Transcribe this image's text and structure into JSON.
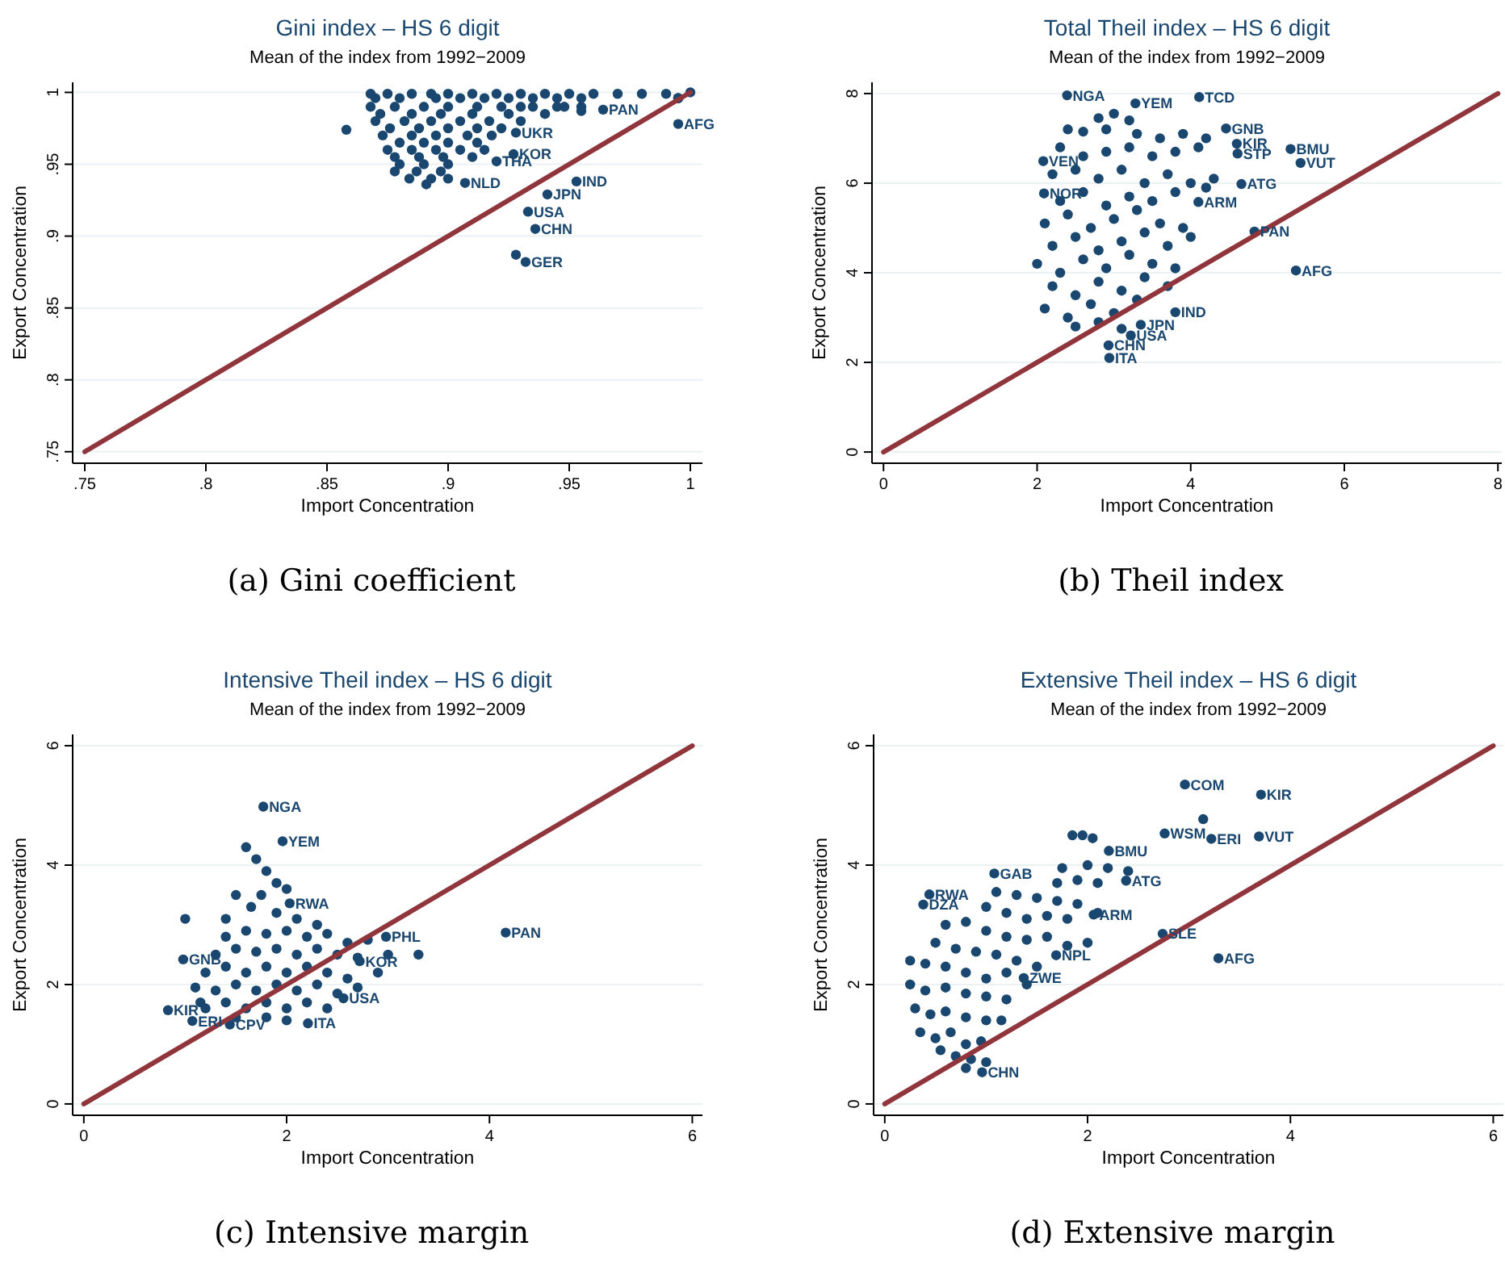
{
  "chart_data": [
    {
      "type": "scatter",
      "title": "Gini index – HS 6 digit",
      "subtitle": "Mean of the  index from 1992−2009",
      "xlabel": "Import Concentration",
      "ylabel": "Export Concentration",
      "xlim": [
        0.745,
        1.005
      ],
      "ylim": [
        0.742,
        1.007
      ],
      "xticks": [
        {
          "value": 0.75,
          "label": ".75"
        },
        {
          "value": 0.8,
          "label": ".8"
        },
        {
          "value": 0.85,
          "label": ".85"
        },
        {
          "value": 0.9,
          "label": ".9"
        },
        {
          "value": 0.95,
          "label": ".95"
        },
        {
          "value": 1,
          "label": "1"
        }
      ],
      "yticks": [
        {
          "value": 0.75,
          "label": ".75"
        },
        {
          "value": 0.8,
          "label": ".8"
        },
        {
          "value": 0.85,
          "label": ".85"
        },
        {
          "value": 0.9,
          "label": ".9"
        },
        {
          "value": 0.95,
          "label": ".95"
        },
        {
          "value": 1,
          "label": "1"
        }
      ],
      "grid": "y",
      "series": [
        {
          "marker": "circle",
          "color": "#1a476f",
          "x": [
            0.868,
            0.875,
            0.885,
            0.893,
            0.9,
            0.91,
            0.92,
            0.93,
            0.94,
            0.95,
            0.96,
            0.97,
            0.98,
            0.99,
            1.0,
            0.87,
            0.88,
            0.895,
            0.905,
            0.915,
            0.925,
            0.935,
            0.945,
            0.955,
            0.995,
            0.995,
            0.995,
            0.995,
            0.868,
            0.878,
            0.89,
            0.9,
            0.912,
            0.922,
            0.935,
            0.948,
            0.955,
            0.945,
            0.93,
            0.872,
            0.885,
            0.897,
            0.91,
            0.925,
            0.94,
            0.955,
            0.87,
            0.882,
            0.893,
            0.905,
            0.917,
            0.93,
            0.876,
            0.888,
            0.9,
            0.912,
            0.922,
            0.873,
            0.885,
            0.895,
            0.908,
            0.918,
            0.88,
            0.89,
            0.9,
            0.912,
            0.875,
            0.885,
            0.895,
            0.905,
            0.915,
            0.878,
            0.888,
            0.898,
            0.91,
            0.88,
            0.89,
            0.9,
            0.878,
            0.887,
            0.897,
            0.884,
            0.893,
            0.9,
            0.891,
            0.858,
            0.995,
            0.953,
            0.941,
            0.933,
            0.936,
            0.928,
            0.932,
            0.907,
            0.927,
            0.92,
            0.928,
            0.964
          ],
          "values": [
            0.999,
            0.999,
            0.999,
            0.999,
            0.999,
            0.999,
            0.999,
            0.999,
            0.999,
            0.999,
            0.999,
            0.999,
            0.999,
            0.999,
            1.0,
            0.996,
            0.996,
            0.996,
            0.996,
            0.996,
            0.996,
            0.996,
            0.996,
            0.996,
            0.996,
            0.996,
            0.996,
            0.996,
            0.99,
            0.99,
            0.99,
            0.99,
            0.99,
            0.99,
            0.99,
            0.99,
            0.99,
            0.99,
            0.99,
            0.985,
            0.985,
            0.985,
            0.985,
            0.985,
            0.985,
            0.987,
            0.98,
            0.98,
            0.98,
            0.98,
            0.98,
            0.98,
            0.975,
            0.975,
            0.975,
            0.975,
            0.975,
            0.97,
            0.97,
            0.97,
            0.97,
            0.97,
            0.965,
            0.965,
            0.965,
            0.965,
            0.96,
            0.96,
            0.96,
            0.96,
            0.96,
            0.955,
            0.955,
            0.955,
            0.955,
            0.95,
            0.95,
            0.95,
            0.945,
            0.945,
            0.945,
            0.94,
            0.94,
            0.94,
            0.936,
            0.974,
            0.978,
            0.938,
            0.929,
            0.917,
            0.905,
            0.887,
            0.882,
            0.937,
            0.957,
            0.952,
            0.972,
            0.988
          ]
        },
        {
          "type": "line",
          "color": "#90353b",
          "x": [
            0.75,
            1
          ],
          "values": [
            0.75,
            1
          ]
        }
      ],
      "annotations": [
        {
          "text": "AFG",
          "x": 0.995,
          "y": 0.978
        },
        {
          "text": "IND",
          "x": 0.953,
          "y": 0.938
        },
        {
          "text": "JPN",
          "x": 0.941,
          "y": 0.929
        },
        {
          "text": "USA",
          "x": 0.933,
          "y": 0.917
        },
        {
          "text": "CHN",
          "x": 0.936,
          "y": 0.905
        },
        {
          "text": "GER",
          "x": 0.932,
          "y": 0.882
        },
        {
          "text": "NLD",
          "x": 0.907,
          "y": 0.937
        },
        {
          "text": "KOR",
          "x": 0.927,
          "y": 0.957
        },
        {
          "text": "THA",
          "x": 0.92,
          "y": 0.952
        },
        {
          "text": "UKR",
          "x": 0.928,
          "y": 0.972
        },
        {
          "text": "PAN",
          "x": 0.964,
          "y": 0.988
        },
        "(a) Gini coefficient"
      ]
    },
    {
      "type": "scatter",
      "title": "Total Theil index – HS 6 digit",
      "subtitle": "Mean of the  index from 1992−2009",
      "xlabel": "Import Concentration",
      "ylabel": "Export Concentration",
      "xlim": [
        -0.15,
        8.05
      ],
      "ylim": [
        -0.25,
        8.25
      ],
      "xticks": [
        0,
        2,
        4,
        6,
        8
      ],
      "yticks": [
        0,
        2,
        4,
        6,
        8
      ],
      "grid": "y",
      "series": [
        {
          "marker": "circle",
          "color": "#1a476f",
          "x": [
            2.8,
            3.0,
            3.2,
            2.4,
            2.6,
            2.9,
            3.3,
            3.6,
            3.9,
            4.2,
            2.3,
            2.6,
            2.9,
            3.2,
            3.5,
            3.8,
            4.1,
            2.2,
            2.5,
            2.8,
            3.1,
            3.4,
            3.7,
            4.0,
            4.3,
            2.3,
            2.6,
            2.9,
            3.2,
            3.5,
            3.8,
            4.2,
            2.1,
            2.4,
            2.7,
            3.0,
            3.3,
            3.6,
            3.9,
            2.2,
            2.5,
            2.8,
            3.1,
            3.4,
            3.7,
            4.0,
            2.0,
            2.3,
            2.6,
            2.9,
            3.2,
            3.5,
            3.8,
            2.2,
            2.5,
            2.8,
            3.1,
            3.4,
            3.7,
            2.1,
            2.4,
            2.7,
            3.0,
            3.3,
            2.5,
            2.8,
            3.1,
            2.39,
            4.11,
            3.28,
            4.46,
            5.3,
            5.43,
            4.6,
            4.61,
            2.08,
            2.09,
            4.66,
            4.1,
            4.83,
            5.37,
            3.8,
            3.35,
            3.22,
            2.93,
            2.94
          ],
          "values": [
            7.45,
            7.55,
            7.4,
            7.2,
            7.15,
            7.2,
            7.1,
            7.0,
            7.1,
            7.0,
            6.8,
            6.6,
            6.7,
            6.8,
            6.6,
            6.7,
            6.8,
            6.2,
            6.3,
            6.1,
            6.3,
            6.0,
            6.2,
            6.0,
            6.1,
            5.6,
            5.8,
            5.5,
            5.7,
            5.6,
            5.8,
            5.9,
            5.1,
            5.3,
            5.0,
            5.2,
            5.4,
            5.1,
            5.0,
            4.6,
            4.8,
            4.5,
            4.7,
            4.9,
            4.6,
            4.8,
            4.2,
            4.0,
            4.3,
            4.1,
            4.4,
            4.2,
            4.1,
            3.7,
            3.5,
            3.8,
            3.6,
            3.9,
            3.7,
            3.2,
            3.0,
            3.3,
            3.1,
            3.4,
            2.8,
            2.9,
            2.75,
            7.96,
            7.92,
            7.78,
            7.22,
            6.76,
            6.45,
            6.88,
            6.66,
            6.49,
            5.77,
            5.98,
            5.58,
            4.92,
            4.05,
            3.12,
            2.84,
            2.6,
            2.38,
            2.1
          ]
        },
        {
          "type": "line",
          "color": "#90353b",
          "x": [
            0,
            8
          ],
          "values": [
            0,
            8
          ]
        }
      ],
      "annotations": [
        {
          "text": "NGA",
          "x": 2.39,
          "y": 7.96
        },
        {
          "text": "TCD",
          "x": 4.11,
          "y": 7.92
        },
        {
          "text": "YEM",
          "x": 3.28,
          "y": 7.78
        },
        {
          "text": "GNB",
          "x": 4.46,
          "y": 7.22
        },
        {
          "text": "BMU",
          "x": 5.3,
          "y": 6.76
        },
        {
          "text": "VUT",
          "x": 5.43,
          "y": 6.45
        },
        {
          "text": "KIR",
          "x": 4.6,
          "y": 6.88
        },
        {
          "text": "STP",
          "x": 4.61,
          "y": 6.66
        },
        {
          "text": "VEN",
          "x": 2.08,
          "y": 6.49
        },
        {
          "text": "NOR",
          "x": 2.09,
          "y": 5.77
        },
        {
          "text": "ATG",
          "x": 4.66,
          "y": 5.98
        },
        {
          "text": "ARM",
          "x": 4.1,
          "y": 5.58
        },
        {
          "text": "PAN",
          "x": 4.83,
          "y": 4.92
        },
        {
          "text": "AFG",
          "x": 5.37,
          "y": 4.05
        },
        {
          "text": "IND",
          "x": 3.8,
          "y": 3.12
        },
        {
          "text": "JPN",
          "x": 3.35,
          "y": 2.84
        },
        {
          "text": "USA",
          "x": 3.22,
          "y": 2.6
        },
        {
          "text": "CHN",
          "x": 2.93,
          "y": 2.38
        },
        {
          "text": "ITA",
          "x": 2.94,
          "y": 2.1
        },
        "(b) Theil index"
      ]
    },
    {
      "type": "scatter",
      "title": "Intensive Theil index – HS 6 digit",
      "subtitle": "Mean of the  index from 1992−2009",
      "xlabel": "Import Concentration",
      "ylabel": "Export Concentration",
      "xlim": [
        -0.11,
        6.1
      ],
      "ylim": [
        -0.19,
        6.19
      ],
      "xticks": [
        0,
        2,
        4,
        6
      ],
      "yticks": [
        0,
        2,
        4,
        6
      ],
      "grid": "y",
      "series": [
        {
          "marker": "circle",
          "color": "#1a476f",
          "x": [
            1.6,
            1.7,
            1.8,
            1.9,
            1.75,
            2.0,
            1.5,
            1.65,
            1.9,
            2.1,
            2.3,
            1.4,
            1.0,
            1.4,
            1.6,
            1.8,
            2.0,
            2.2,
            2.4,
            2.6,
            2.8,
            1.3,
            1.5,
            1.7,
            1.9,
            2.1,
            2.3,
            2.5,
            2.7,
            3.0,
            3.3,
            1.2,
            1.4,
            1.6,
            1.8,
            2.0,
            2.2,
            2.4,
            2.6,
            2.9,
            1.3,
            1.5,
            1.7,
            1.9,
            2.1,
            2.3,
            2.5,
            2.7,
            1.2,
            1.4,
            1.6,
            1.8,
            2.0,
            2.2,
            2.4,
            1.5,
            1.8,
            2.0,
            1.1,
            1.15,
            1.77,
            1.96,
            2.03,
            2.98,
            4.16,
            0.98,
            0.83,
            1.07,
            1.44,
            2.21,
            2.56,
            2.72
          ],
          "values": [
            4.3,
            4.1,
            3.9,
            3.7,
            3.5,
            3.6,
            3.5,
            3.3,
            3.2,
            3.1,
            3.0,
            3.1,
            3.1,
            2.8,
            2.9,
            2.85,
            2.9,
            2.8,
            2.85,
            2.7,
            2.75,
            2.5,
            2.6,
            2.55,
            2.6,
            2.5,
            2.6,
            2.5,
            2.45,
            2.5,
            2.5,
            2.2,
            2.3,
            2.2,
            2.3,
            2.2,
            2.3,
            2.2,
            2.1,
            2.2,
            1.9,
            2.0,
            1.9,
            2.0,
            1.9,
            2.0,
            1.85,
            1.95,
            1.6,
            1.7,
            1.6,
            1.7,
            1.6,
            1.7,
            1.6,
            1.45,
            1.45,
            1.4,
            1.95,
            1.7,
            4.98,
            4.4,
            3.36,
            2.8,
            2.87,
            2.42,
            1.57,
            1.39,
            1.33,
            1.35,
            1.77,
            2.39
          ]
        },
        {
          "type": "line",
          "color": "#90353b",
          "x": [
            0,
            6
          ],
          "values": [
            0,
            6
          ]
        }
      ],
      "annotations": [
        {
          "text": "NGA",
          "x": 1.77,
          "y": 4.98
        },
        {
          "text": "YEM",
          "x": 1.96,
          "y": 4.4
        },
        {
          "text": "RWA",
          "x": 2.03,
          "y": 3.36
        },
        {
          "text": "PHL",
          "x": 2.98,
          "y": 2.8
        },
        {
          "text": "PAN",
          "x": 4.16,
          "y": 2.87
        },
        {
          "text": "GNB",
          "x": 0.98,
          "y": 2.42
        },
        {
          "text": "KIR",
          "x": 0.83,
          "y": 1.57
        },
        {
          "text": "ERI",
          "x": 1.07,
          "y": 1.39
        },
        {
          "text": "CPV",
          "x": 1.44,
          "y": 1.33
        },
        {
          "text": "ITA",
          "x": 2.21,
          "y": 1.35
        },
        {
          "text": "USA",
          "x": 2.56,
          "y": 1.77
        },
        {
          "text": "KOR",
          "x": 2.72,
          "y": 2.39
        },
        "(c) Intensive margin"
      ]
    },
    {
      "type": "scatter",
      "title": "Extensive Theil index – HS 6 digit",
      "subtitle": "Mean of the  index from 1992−2009",
      "xlabel": "Import Concentration",
      "ylabel": "Export Concentration",
      "xlim": [
        -0.11,
        6.1
      ],
      "ylim": [
        -0.19,
        6.19
      ],
      "xticks": [
        0,
        2,
        4,
        6
      ],
      "yticks": [
        0,
        2,
        4,
        6
      ],
      "grid": "y",
      "series": [
        {
          "marker": "circle",
          "color": "#1a476f",
          "x": [
            1.85,
            1.95,
            2.05,
            1.75,
            2.0,
            2.2,
            2.4,
            1.7,
            1.9,
            2.1,
            1.1,
            1.3,
            1.5,
            1.7,
            1.9,
            2.1,
            1.0,
            1.2,
            1.4,
            1.6,
            1.8,
            0.6,
            0.8,
            1.0,
            1.2,
            1.4,
            1.6,
            1.8,
            2.0,
            0.5,
            0.7,
            0.9,
            1.1,
            1.3,
            1.5,
            0.25,
            0.4,
            0.6,
            0.8,
            1.0,
            1.2,
            1.4,
            0.25,
            0.4,
            0.6,
            0.8,
            1.0,
            1.2,
            0.3,
            0.45,
            0.6,
            0.8,
            1.0,
            1.15,
            0.35,
            0.5,
            0.65,
            0.8,
            0.95,
            0.55,
            0.7,
            0.85,
            1.0,
            0.8,
            2.96,
            3.71,
            3.14,
            2.76,
            3.22,
            3.69,
            2.21,
            2.38,
            1.08,
            0.44,
            0.38,
            2.74,
            3.29,
            1.69,
            1.37,
            2.06,
            0.96
          ],
          "values": [
            4.5,
            4.5,
            4.45,
            3.95,
            4.0,
            3.95,
            3.9,
            3.7,
            3.75,
            3.7,
            3.55,
            3.5,
            3.45,
            3.4,
            3.35,
            3.2,
            3.3,
            3.2,
            3.1,
            3.15,
            3.1,
            3.0,
            3.05,
            2.9,
            2.8,
            2.75,
            2.8,
            2.65,
            2.7,
            2.7,
            2.6,
            2.55,
            2.5,
            2.4,
            2.3,
            2.4,
            2.35,
            2.3,
            2.2,
            2.1,
            2.2,
            2.0,
            2.0,
            1.9,
            1.95,
            1.85,
            1.8,
            1.75,
            1.6,
            1.5,
            1.55,
            1.45,
            1.4,
            1.4,
            1.2,
            1.1,
            1.2,
            1.0,
            1.05,
            0.9,
            0.8,
            0.75,
            0.7,
            0.6,
            5.35,
            5.18,
            4.77,
            4.53,
            4.44,
            4.48,
            4.24,
            3.74,
            3.86,
            3.51,
            3.34,
            2.85,
            2.44,
            2.49,
            2.11,
            3.17,
            0.53
          ]
        },
        {
          "type": "line",
          "color": "#90353b",
          "x": [
            0,
            6
          ],
          "values": [
            0,
            6
          ]
        }
      ],
      "annotations": [
        {
          "text": "COM",
          "x": 2.96,
          "y": 5.35
        },
        {
          "text": "KIR",
          "x": 3.71,
          "y": 5.18
        },
        {
          "text": "WSM",
          "x": 2.76,
          "y": 4.53
        },
        {
          "text": "ERI",
          "x": 3.22,
          "y": 4.44
        },
        {
          "text": "VUT",
          "x": 3.69,
          "y": 4.48
        },
        {
          "text": "BMU",
          "x": 2.21,
          "y": 4.24
        },
        {
          "text": "ATG",
          "x": 2.38,
          "y": 3.74
        },
        {
          "text": "GAB",
          "x": 1.08,
          "y": 3.86
        },
        {
          "text": "RWA",
          "x": 0.44,
          "y": 3.51
        },
        {
          "text": "DZA",
          "x": 0.38,
          "y": 3.34
        },
        {
          "text": "SLE",
          "x": 2.74,
          "y": 2.85
        },
        {
          "text": "AFG",
          "x": 3.29,
          "y": 2.44
        },
        {
          "text": "NPL",
          "x": 1.69,
          "y": 2.49
        },
        {
          "text": "ZWE",
          "x": 1.37,
          "y": 2.11
        },
        {
          "text": "ARM",
          "x": 2.06,
          "y": 3.17
        },
        {
          "text": "CHN",
          "x": 0.96,
          "y": 0.53
        },
        "(d) Extensive margin"
      ]
    }
  ]
}
